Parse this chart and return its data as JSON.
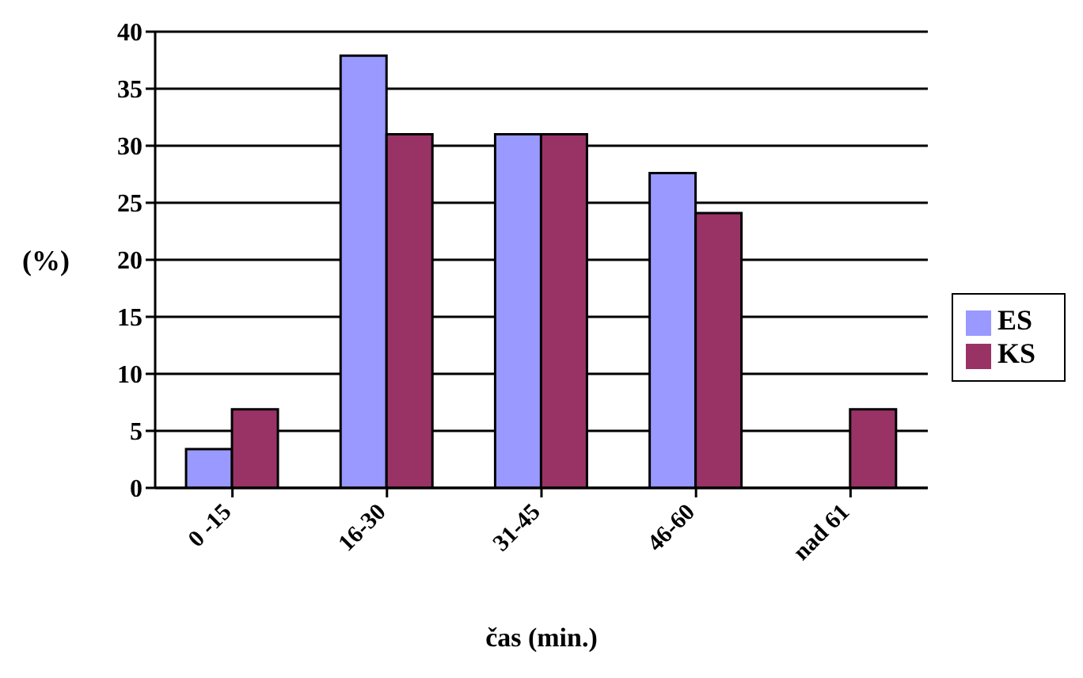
{
  "chart_data": {
    "type": "bar",
    "xlabel": "čas (min.)",
    "ylabel": "(%)",
    "categories": [
      "0 -15",
      "16-30",
      "31-45",
      "46-60",
      "nad 61"
    ],
    "series": [
      {
        "name": "ES",
        "color": "#9999ff",
        "values": [
          3.4,
          37.9,
          31,
          27.6,
          0
        ]
      },
      {
        "name": "KS",
        "color": "#993366",
        "values": [
          6.9,
          31,
          31,
          24.1,
          6.9
        ]
      }
    ],
    "ylim": [
      0,
      40
    ],
    "yticks": [
      0,
      5,
      10,
      15,
      20,
      25,
      30,
      35,
      40
    ],
    "grid": "y",
    "legend": "right"
  }
}
